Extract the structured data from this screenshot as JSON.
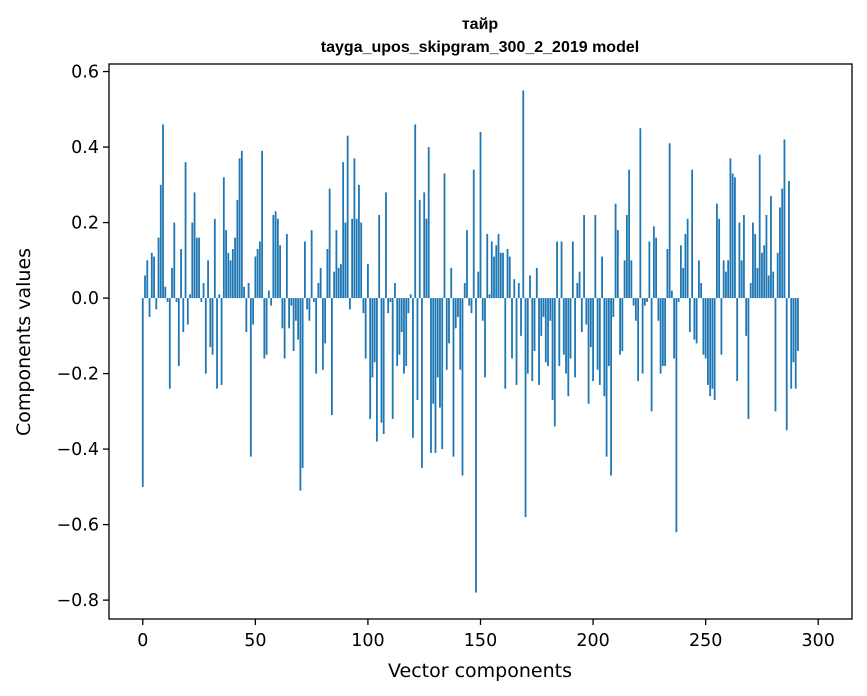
{
  "chart_data": {
    "type": "bar",
    "title": "тайр",
    "subtitle": "tayga_upos_skipgram_300_2_2019 model",
    "xlabel": "Vector components",
    "ylabel": "Components values",
    "xlim": [
      -15,
      315
    ],
    "ylim": [
      -0.85,
      0.62
    ],
    "xticks": [
      0,
      50,
      100,
      150,
      200,
      250,
      300
    ],
    "xtick_labels": [
      "0",
      "50",
      "100",
      "150",
      "200",
      "250",
      "300"
    ],
    "yticks": [
      -0.8,
      -0.6,
      -0.4,
      -0.2,
      0.0,
      0.2,
      0.4,
      0.6
    ],
    "ytick_labels": [
      "−0.8",
      "−0.6",
      "−0.4",
      "−0.2",
      "0.0",
      "0.2",
      "0.4",
      "0.6"
    ],
    "series": [
      {
        "name": "тайр",
        "color": "#1f77b4",
        "values": [
          -0.5,
          0.06,
          0.1,
          -0.05,
          0.12,
          0.11,
          -0.03,
          0.16,
          0.3,
          0.46,
          0.03,
          -0.01,
          -0.24,
          0.08,
          0.2,
          -0.01,
          -0.18,
          0.13,
          -0.09,
          0.36,
          -0.07,
          0.01,
          0.2,
          0.28,
          0.16,
          0.16,
          -0.01,
          0.04,
          -0.2,
          0.1,
          -0.13,
          -0.15,
          0.21,
          -0.24,
          0.01,
          -0.23,
          0.32,
          0.18,
          0.12,
          0.1,
          0.13,
          0.16,
          0.26,
          0.37,
          0.39,
          0.03,
          -0.09,
          0.04,
          -0.42,
          -0.07,
          0.11,
          0.13,
          0.15,
          0.39,
          -0.16,
          -0.15,
          0.02,
          -0.02,
          0.22,
          0.23,
          0.21,
          0.14,
          -0.08,
          -0.16,
          0.17,
          -0.08,
          -0.02,
          -0.14,
          -0.06,
          -0.11,
          -0.51,
          -0.45,
          0.15,
          -0.03,
          -0.06,
          0.18,
          -0.01,
          -0.2,
          0.04,
          0.08,
          -0.19,
          -0.12,
          0.13,
          0.29,
          -0.31,
          0.07,
          0.18,
          0.08,
          0.09,
          0.36,
          0.2,
          0.43,
          -0.03,
          0.21,
          0.37,
          0.21,
          0.3,
          0.2,
          -0.04,
          -0.16,
          0.09,
          -0.32,
          -0.21,
          -0.17,
          -0.38,
          0.22,
          -0.33,
          -0.36,
          0.28,
          -0.04,
          -0.01,
          -0.32,
          0.04,
          -0.18,
          -0.15,
          -0.09,
          -0.2,
          -0.18,
          -0.04,
          0.01,
          -0.37,
          0.46,
          -0.27,
          0.26,
          -0.45,
          0.28,
          0.21,
          0.4,
          -0.41,
          -0.28,
          -0.41,
          -0.21,
          -0.29,
          -0.4,
          0.33,
          -0.19,
          -0.12,
          0.08,
          -0.42,
          -0.08,
          -0.05,
          -0.19,
          -0.47,
          0.04,
          0.18,
          -0.02,
          -0.04,
          0.34,
          -0.78,
          0.07,
          0.44,
          -0.06,
          -0.21,
          0.17,
          0.01,
          0.15,
          0.11,
          0.14,
          0.17,
          0.12,
          0.12,
          -0.24,
          0.13,
          0.11,
          -0.16,
          0.05,
          -0.23,
          0.04,
          -0.1,
          0.55,
          -0.58,
          -0.2,
          0.06,
          -0.22,
          -0.14,
          0.08,
          -0.23,
          -0.1,
          -0.05,
          -0.17,
          -0.18,
          -0.06,
          -0.27,
          -0.34,
          0.15,
          -0.18,
          0.15,
          -0.15,
          -0.2,
          -0.26,
          -0.16,
          0.15,
          -0.21,
          0.04,
          0.07,
          -0.09,
          0.22,
          -0.07,
          -0.28,
          -0.13,
          -0.22,
          0.22,
          -0.19,
          -0.23,
          0.11,
          -0.26,
          -0.42,
          -0.18,
          -0.47,
          -0.05,
          0.25,
          0.18,
          -0.15,
          -0.14,
          0.1,
          0.22,
          0.34,
          0.1,
          -0.02,
          -0.06,
          -0.22,
          0.45,
          -0.2,
          -0.02,
          -0.01,
          0.15,
          -0.3,
          0.19,
          0.16,
          -0.06,
          -0.2,
          -0.18,
          -0.18,
          0.13,
          0.41,
          0.02,
          -0.16,
          -0.62,
          -0.01,
          0.14,
          0.08,
          0.17,
          0.21,
          -0.09,
          0.34,
          -0.11,
          -0.12,
          0.1,
          0.04,
          -0.15,
          -0.16,
          -0.23,
          -0.26,
          -0.24,
          -0.27,
          0.25,
          0.21,
          -0.15,
          0.1,
          0.07,
          0.1,
          0.37,
          0.33,
          0.32,
          -0.22,
          0.2,
          0.1,
          0.22,
          -0.1,
          -0.32,
          0.04,
          0.2,
          0.17,
          0.08,
          0.38,
          0.12,
          0.14,
          0.22,
          0.06,
          0.27,
          0.07,
          -0.3,
          0.12,
          0.24,
          0.29,
          0.42,
          -0.35,
          0.31,
          -0.24,
          -0.17,
          -0.24,
          -0.14
        ]
      }
    ]
  }
}
